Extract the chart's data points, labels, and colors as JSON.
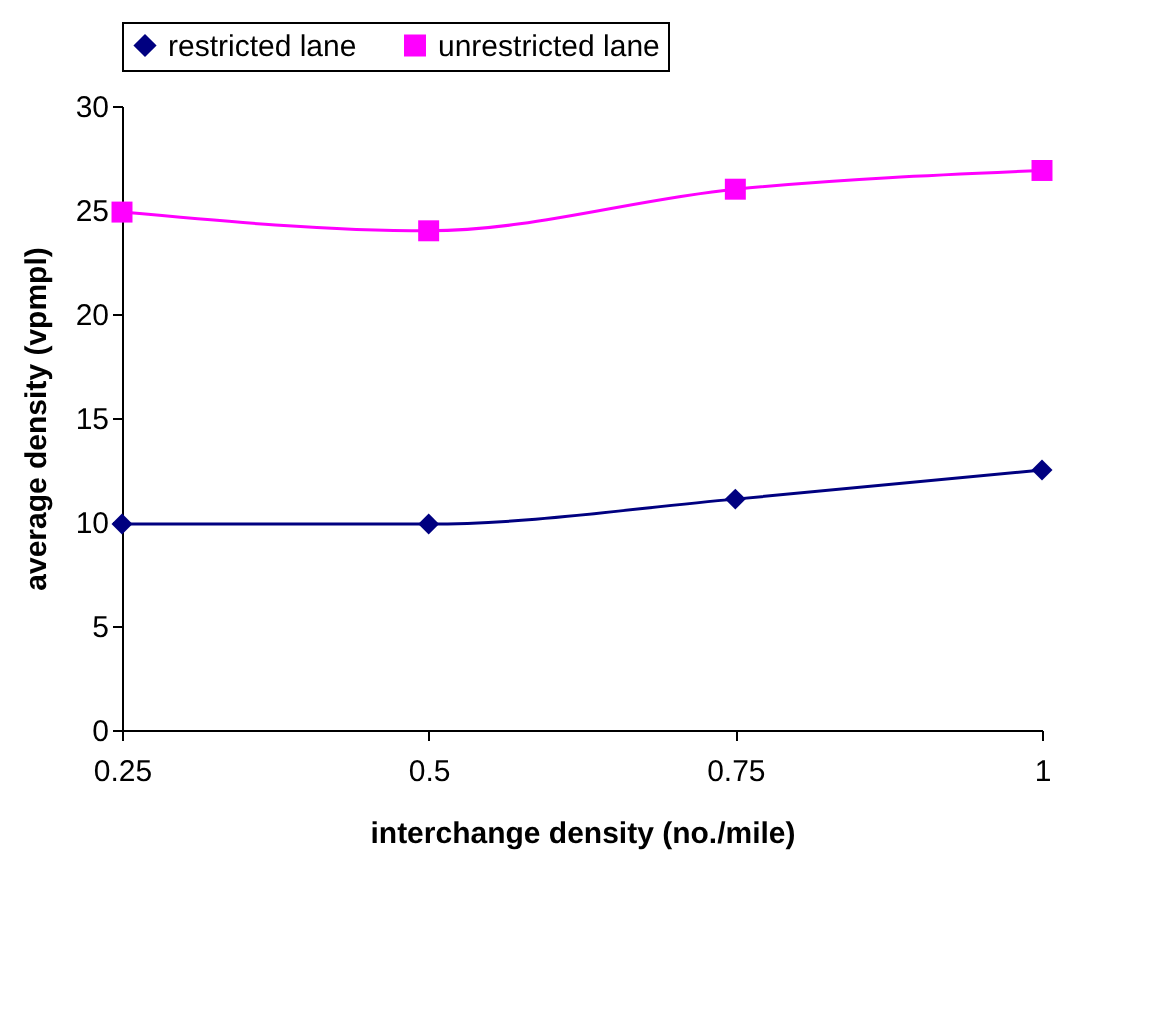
{
  "chart_data": {
    "type": "line",
    "xlabel": "interchange density (no./mile)",
    "ylabel": "average density (vpmpl)",
    "x": [
      0.25,
      0.5,
      0.75,
      1
    ],
    "series": [
      {
        "name": "restricted lane",
        "color": "#000080",
        "marker": "diamond",
        "values": [
          9.9,
          9.9,
          11.1,
          12.5
        ]
      },
      {
        "name": "unrestricted lane",
        "color": "#ff00ff",
        "marker": "square",
        "values": [
          24.9,
          24,
          26,
          26.9
        ]
      }
    ],
    "xlim": [
      0.25,
      1
    ],
    "xticks": [
      0.25,
      0.5,
      0.75,
      1
    ],
    "ylim": [
      0,
      30
    ],
    "yticks": [
      0,
      5,
      10,
      15,
      20,
      25,
      30
    ],
    "grid": false,
    "legend": "top",
    "line_style": "solid"
  }
}
